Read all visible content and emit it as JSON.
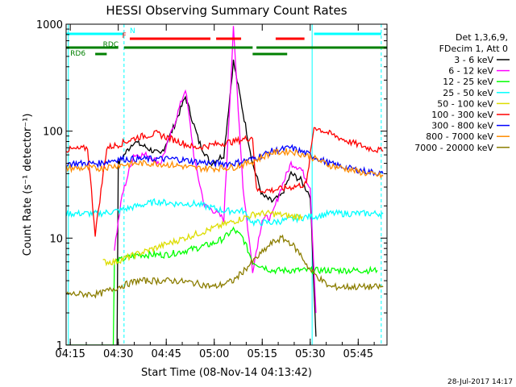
{
  "title": "HESSI Observing Summary Count Rates",
  "footer_date": "28-Jul-2017 14:17",
  "chart_data": {
    "type": "line",
    "title": "HESSI Observing Summary Count Rates",
    "xlabel": "Start Time (08-Nov-14 04:13:42)",
    "ylabel": "Count Rate (s⁻¹ detector⁻¹)",
    "y_scale": "log",
    "xlim": [
      4.2283,
      5.9
    ],
    "ylim": [
      1,
      1000
    ],
    "x_ticks": [
      {
        "label": "04:15",
        "value": 4.25
      },
      {
        "label": "04:30",
        "value": 4.5
      },
      {
        "label": "04:45",
        "value": 4.75
      },
      {
        "label": "05:00",
        "value": 5.0
      },
      {
        "label": "05:15",
        "value": 5.25
      },
      {
        "label": "05:30",
        "value": 5.5
      },
      {
        "label": "05:45",
        "value": 5.75
      }
    ],
    "y_ticks": [
      {
        "label": "1",
        "value": 1
      },
      {
        "label": "10",
        "value": 10
      },
      {
        "label": "100",
        "value": 100
      },
      {
        "label": "1000",
        "value": 1000
      }
    ],
    "legend": {
      "position": "right",
      "header": [
        "Det 1,3,6,9,",
        "FDecim 1, Att 0"
      ]
    },
    "series": [
      {
        "name": "3 - 6 keV",
        "color": "#000000",
        "x": [
          4.23,
          4.35,
          4.5,
          4.58,
          4.65,
          4.72,
          4.78,
          4.85,
          4.92,
          4.98,
          5.05,
          5.1,
          5.15,
          5.2,
          5.25,
          5.3,
          5.35,
          5.4,
          5.45,
          5.5,
          5.53
        ],
        "y": [
          0,
          0,
          50,
          80,
          70,
          60,
          100,
          210,
          80,
          50,
          60,
          450,
          150,
          50,
          25,
          22,
          25,
          40,
          35,
          25,
          1.2
        ]
      },
      {
        "name": "6 - 12 keV",
        "color": "#ff00ff",
        "x": [
          4.48,
          4.52,
          4.58,
          4.65,
          4.72,
          4.78,
          4.85,
          4.9,
          4.95,
          5.0,
          5.05,
          5.1,
          5.15,
          5.2,
          5.25,
          5.3,
          5.35,
          5.4,
          5.45,
          5.5,
          5.53
        ],
        "y": [
          8,
          25,
          60,
          60,
          50,
          100,
          250,
          50,
          20,
          18,
          15,
          900,
          30,
          5,
          15,
          16,
          30,
          50,
          45,
          30,
          2
        ]
      },
      {
        "name": "12 - 25 keV",
        "color": "#00ff00",
        "x": [
          4.23,
          4.45,
          4.48,
          4.6,
          4.75,
          4.9,
          5.0,
          5.05,
          5.1,
          5.15,
          5.2,
          5.3,
          5.4,
          5.45,
          5.5,
          5.55,
          5.6,
          5.72,
          5.85
        ],
        "y": [
          0,
          0,
          6,
          7,
          7,
          8,
          9,
          10,
          12,
          10,
          6,
          5,
          5,
          5,
          5,
          5,
          5,
          5,
          5
        ]
      },
      {
        "name": "25 - 50 keV",
        "color": "#00ffff",
        "x": [
          4.23,
          4.25,
          4.3,
          4.4,
          4.5,
          4.6,
          4.7,
          4.8,
          4.9,
          5.0,
          5.05,
          5.1,
          5.15,
          5.2,
          5.25,
          5.3,
          5.4,
          5.5,
          5.53,
          5.6,
          5.7,
          5.8,
          5.88
        ],
        "y": [
          17,
          17,
          17,
          17,
          18,
          20,
          22,
          21,
          21,
          19,
          18,
          18,
          18,
          14,
          14,
          14,
          15,
          16,
          16,
          17,
          17,
          17,
          17
        ]
      },
      {
        "name": "50 - 100 keV",
        "color": "#dddd00",
        "x": [
          4.42,
          4.48,
          5.22,
          5.3,
          5.4,
          5.46
        ],
        "y": [
          6,
          6,
          17,
          17,
          16,
          16
        ]
      },
      {
        "name": "100 - 300 keV",
        "color": "#ff0000",
        "x": [
          4.23,
          4.3,
          4.34,
          4.38,
          4.44,
          4.5,
          4.6,
          4.7,
          4.8,
          4.9,
          5.0,
          5.1,
          5.2,
          5.22,
          5.3,
          5.4,
          5.48,
          5.52,
          5.6,
          5.7,
          5.8,
          5.88
        ],
        "y": [
          67,
          68,
          70,
          11,
          70,
          75,
          88,
          95,
          82,
          70,
          75,
          80,
          88,
          28,
          28,
          30,
          32,
          110,
          95,
          80,
          70,
          65
        ]
      },
      {
        "name": "300 - 800 keV",
        "color": "#0000ff",
        "x": [
          4.23,
          4.3,
          4.4,
          4.5,
          4.6,
          4.7,
          4.8,
          4.9,
          5.0,
          5.1,
          5.2,
          5.3,
          5.4,
          5.5,
          5.6,
          5.7,
          5.8,
          5.88
        ],
        "y": [
          50,
          50,
          50,
          55,
          55,
          55,
          55,
          52,
          50,
          50,
          55,
          65,
          70,
          60,
          50,
          45,
          42,
          40
        ]
      },
      {
        "name": "800 - 7000 keV",
        "color": "#ff8c00",
        "x": [
          4.23,
          4.3,
          4.4,
          4.5,
          4.6,
          4.7,
          4.8,
          4.9,
          5.0,
          5.1,
          5.2,
          5.3,
          5.4,
          5.5,
          5.6,
          5.7,
          5.8,
          5.88
        ],
        "y": [
          45,
          45,
          45,
          48,
          50,
          50,
          48,
          45,
          45,
          46,
          52,
          63,
          65,
          58,
          48,
          44,
          40,
          38
        ]
      },
      {
        "name": "7000 - 20000 keV",
        "color": "#8b7d00",
        "x": [
          4.23,
          4.3,
          4.4,
          4.5,
          4.6,
          4.7,
          4.8,
          4.9,
          5.0,
          5.1,
          5.2,
          5.3,
          5.35,
          5.4,
          5.45,
          5.5,
          5.6,
          5.7,
          5.8,
          5.88
        ],
        "y": [
          3,
          3,
          3,
          3.5,
          4,
          4,
          4,
          3.8,
          3.5,
          4,
          6,
          9,
          10,
          9,
          7,
          5,
          3.5,
          3.5,
          3.5,
          3.5
        ]
      }
    ],
    "state_bars": [
      {
        "label": "N",
        "color": "#00ffff",
        "segments": [
          [
            4.23,
            4.53
          ],
          [
            5.52,
            5.87
          ]
        ]
      },
      {
        "label": "F",
        "color": "#ff0000",
        "segments": [
          [
            4.56,
            4.98
          ],
          [
            5.01,
            5.14
          ],
          [
            5.32,
            5.47
          ]
        ]
      },
      {
        "label": "RDC",
        "color": "#008000",
        "segments": [
          [
            4.23,
            4.5
          ],
          [
            4.53,
            5.2
          ],
          [
            5.22,
            5.9
          ]
        ]
      },
      {
        "label": "RD6",
        "color": "#008000",
        "segments": [
          [
            4.38,
            4.44
          ],
          [
            5.2,
            5.38
          ]
        ]
      }
    ],
    "vertical_markers": [
      {
        "color": "#00ffff",
        "style": "solid",
        "x": 4.24
      },
      {
        "color": "#00ffff",
        "style": "dashed",
        "x": 4.53
      },
      {
        "color": "#00ffff",
        "style": "solid",
        "x": 5.51
      },
      {
        "color": "#00ffff",
        "style": "dashed",
        "x": 5.87
      }
    ]
  }
}
